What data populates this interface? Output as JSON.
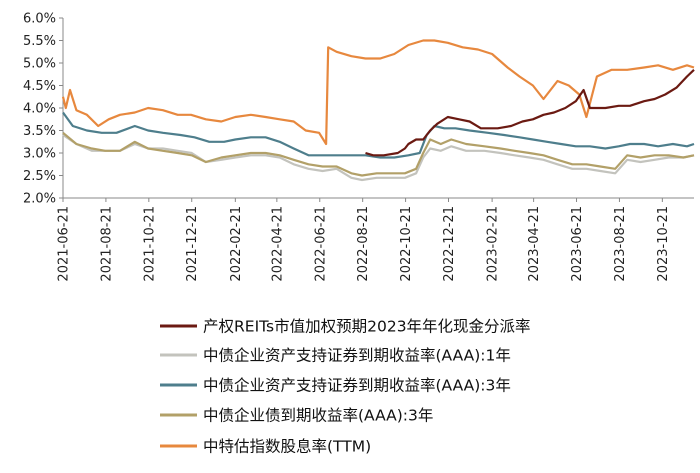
{
  "chart_data": {
    "type": "line",
    "x_ticks": [
      "2021-06-21",
      "2021-08-21",
      "2021-10-21",
      "2021-12-21",
      "2022-02-21",
      "2022-04-21",
      "2022-06-21",
      "2022-08-21",
      "2022-10-21",
      "2022-12-21",
      "2023-02-21",
      "2023-04-21",
      "2023-06-21",
      "2023-08-21",
      "2023-10-21"
    ],
    "y_ticks": [
      "2.0%",
      "2.5%",
      "3.0%",
      "3.5%",
      "4.0%",
      "4.5%",
      "5.0%",
      "5.5%",
      "6.0%"
    ],
    "ylim": [
      2.0,
      6.0
    ],
    "xlim": [
      "2021-06-21",
      "2023-12-05"
    ],
    "grid": false,
    "legend_position": "bottom",
    "series": [
      {
        "name": "产权REITs市值加权预期2023年年化现金分派率",
        "color": "#6b1a12",
        "points": [
          [
            "2022-08-25",
            3.0
          ],
          [
            "2022-09-05",
            2.95
          ],
          [
            "2022-09-20",
            2.95
          ],
          [
            "2022-10-10",
            3.0
          ],
          [
            "2022-10-20",
            3.1
          ],
          [
            "2022-10-25",
            3.2
          ],
          [
            "2022-11-05",
            3.3
          ],
          [
            "2022-11-15",
            3.3
          ],
          [
            "2022-11-25",
            3.5
          ],
          [
            "2022-12-05",
            3.65
          ],
          [
            "2022-12-20",
            3.8
          ],
          [
            "2023-01-05",
            3.75
          ],
          [
            "2023-01-20",
            3.7
          ],
          [
            "2023-02-05",
            3.55
          ],
          [
            "2023-03-01",
            3.55
          ],
          [
            "2023-03-20",
            3.6
          ],
          [
            "2023-04-05",
            3.7
          ],
          [
            "2023-04-20",
            3.75
          ],
          [
            "2023-05-05",
            3.85
          ],
          [
            "2023-05-20",
            3.9
          ],
          [
            "2023-06-05",
            4.0
          ],
          [
            "2023-06-20",
            4.15
          ],
          [
            "2023-07-01",
            4.4
          ],
          [
            "2023-07-10",
            4.0
          ],
          [
            "2023-08-01",
            4.0
          ],
          [
            "2023-08-20",
            4.05
          ],
          [
            "2023-09-05",
            4.05
          ],
          [
            "2023-09-25",
            4.15
          ],
          [
            "2023-10-10",
            4.2
          ],
          [
            "2023-10-25",
            4.3
          ],
          [
            "2023-11-10",
            4.45
          ],
          [
            "2023-11-25",
            4.7
          ],
          [
            "2023-12-05",
            4.85
          ]
        ]
      },
      {
        "name": "中债企业资产支持证券到期收益率(AAA):1年",
        "color": "#c3c3bd",
        "points": [
          [
            "2021-06-21",
            3.4
          ],
          [
            "2021-07-10",
            3.2
          ],
          [
            "2021-08-01",
            3.05
          ],
          [
            "2021-08-20",
            3.05
          ],
          [
            "2021-09-10",
            3.05
          ],
          [
            "2021-10-01",
            3.2
          ],
          [
            "2021-10-20",
            3.1
          ],
          [
            "2021-11-10",
            3.1
          ],
          [
            "2021-12-01",
            3.05
          ],
          [
            "2021-12-21",
            3.0
          ],
          [
            "2022-01-10",
            2.8
          ],
          [
            "2022-02-01",
            2.85
          ],
          [
            "2022-02-21",
            2.9
          ],
          [
            "2022-03-15",
            2.95
          ],
          [
            "2022-04-05",
            2.95
          ],
          [
            "2022-04-25",
            2.9
          ],
          [
            "2022-05-15",
            2.75
          ],
          [
            "2022-06-05",
            2.65
          ],
          [
            "2022-06-25",
            2.6
          ],
          [
            "2022-07-15",
            2.65
          ],
          [
            "2022-08-05",
            2.45
          ],
          [
            "2022-08-20",
            2.4
          ],
          [
            "2022-09-10",
            2.45
          ],
          [
            "2022-10-01",
            2.45
          ],
          [
            "2022-10-20",
            2.45
          ],
          [
            "2022-11-05",
            2.55
          ],
          [
            "2022-11-15",
            2.9
          ],
          [
            "2022-11-25",
            3.1
          ],
          [
            "2022-12-10",
            3.05
          ],
          [
            "2022-12-25",
            3.15
          ],
          [
            "2023-01-15",
            3.05
          ],
          [
            "2023-02-10",
            3.05
          ],
          [
            "2023-03-05",
            3.0
          ],
          [
            "2023-03-25",
            2.95
          ],
          [
            "2023-04-15",
            2.9
          ],
          [
            "2023-05-05",
            2.85
          ],
          [
            "2023-05-25",
            2.75
          ],
          [
            "2023-06-15",
            2.65
          ],
          [
            "2023-07-05",
            2.65
          ],
          [
            "2023-07-25",
            2.6
          ],
          [
            "2023-08-15",
            2.55
          ],
          [
            "2023-09-01",
            2.85
          ],
          [
            "2023-09-20",
            2.8
          ],
          [
            "2023-10-10",
            2.85
          ],
          [
            "2023-10-30",
            2.9
          ],
          [
            "2023-11-20",
            2.9
          ],
          [
            "2023-12-05",
            2.95
          ]
        ]
      },
      {
        "name": "中债企业资产支持证券到期收益率(AAA):3年",
        "color": "#4e7e8c",
        "points": [
          [
            "2021-06-21",
            3.9
          ],
          [
            "2021-07-05",
            3.6
          ],
          [
            "2021-07-25",
            3.5
          ],
          [
            "2021-08-15",
            3.45
          ],
          [
            "2021-09-05",
            3.45
          ],
          [
            "2021-10-01",
            3.6
          ],
          [
            "2021-10-20",
            3.5
          ],
          [
            "2021-11-10",
            3.45
          ],
          [
            "2021-12-05",
            3.4
          ],
          [
            "2021-12-25",
            3.35
          ],
          [
            "2022-01-15",
            3.25
          ],
          [
            "2022-02-05",
            3.25
          ],
          [
            "2022-02-21",
            3.3
          ],
          [
            "2022-03-15",
            3.35
          ],
          [
            "2022-04-05",
            3.35
          ],
          [
            "2022-04-25",
            3.25
          ],
          [
            "2022-05-15",
            3.1
          ],
          [
            "2022-06-05",
            2.95
          ],
          [
            "2022-06-25",
            2.95
          ],
          [
            "2022-07-15",
            2.95
          ],
          [
            "2022-08-05",
            2.95
          ],
          [
            "2022-08-25",
            2.95
          ],
          [
            "2022-09-15",
            2.9
          ],
          [
            "2022-10-05",
            2.9
          ],
          [
            "2022-10-25",
            2.95
          ],
          [
            "2022-11-10",
            3.0
          ],
          [
            "2022-11-20",
            3.4
          ],
          [
            "2022-12-01",
            3.6
          ],
          [
            "2022-12-15",
            3.55
          ],
          [
            "2022-12-31",
            3.55
          ],
          [
            "2023-01-20",
            3.5
          ],
          [
            "2023-02-15",
            3.45
          ],
          [
            "2023-03-10",
            3.4
          ],
          [
            "2023-04-01",
            3.35
          ],
          [
            "2023-04-20",
            3.3
          ],
          [
            "2023-05-10",
            3.25
          ],
          [
            "2023-05-30",
            3.2
          ],
          [
            "2023-06-20",
            3.15
          ],
          [
            "2023-07-10",
            3.15
          ],
          [
            "2023-08-01",
            3.1
          ],
          [
            "2023-08-20",
            3.15
          ],
          [
            "2023-09-05",
            3.2
          ],
          [
            "2023-09-25",
            3.2
          ],
          [
            "2023-10-15",
            3.15
          ],
          [
            "2023-11-05",
            3.2
          ],
          [
            "2023-11-25",
            3.15
          ],
          [
            "2023-12-05",
            3.2
          ]
        ]
      },
      {
        "name": "中债企业债到期收益率(AAA):3年",
        "color": "#b2a068",
        "points": [
          [
            "2021-06-21",
            3.45
          ],
          [
            "2021-07-10",
            3.2
          ],
          [
            "2021-08-01",
            3.1
          ],
          [
            "2021-08-20",
            3.05
          ],
          [
            "2021-09-10",
            3.05
          ],
          [
            "2021-10-01",
            3.25
          ],
          [
            "2021-10-20",
            3.1
          ],
          [
            "2021-11-10",
            3.05
          ],
          [
            "2021-12-01",
            3.0
          ],
          [
            "2021-12-21",
            2.95
          ],
          [
            "2022-01-10",
            2.8
          ],
          [
            "2022-02-01",
            2.9
          ],
          [
            "2022-02-21",
            2.95
          ],
          [
            "2022-03-15",
            3.0
          ],
          [
            "2022-04-05",
            3.0
          ],
          [
            "2022-04-25",
            2.95
          ],
          [
            "2022-05-15",
            2.85
          ],
          [
            "2022-06-05",
            2.75
          ],
          [
            "2022-06-25",
            2.7
          ],
          [
            "2022-07-15",
            2.7
          ],
          [
            "2022-08-05",
            2.55
          ],
          [
            "2022-08-20",
            2.5
          ],
          [
            "2022-09-10",
            2.55
          ],
          [
            "2022-10-01",
            2.55
          ],
          [
            "2022-10-20",
            2.55
          ],
          [
            "2022-11-05",
            2.65
          ],
          [
            "2022-11-15",
            3.0
          ],
          [
            "2022-11-25",
            3.3
          ],
          [
            "2022-12-10",
            3.2
          ],
          [
            "2022-12-25",
            3.3
          ],
          [
            "2023-01-15",
            3.2
          ],
          [
            "2023-02-10",
            3.15
          ],
          [
            "2023-03-05",
            3.1
          ],
          [
            "2023-03-25",
            3.05
          ],
          [
            "2023-04-15",
            3.0
          ],
          [
            "2023-05-05",
            2.95
          ],
          [
            "2023-05-25",
            2.85
          ],
          [
            "2023-06-15",
            2.75
          ],
          [
            "2023-07-05",
            2.75
          ],
          [
            "2023-07-25",
            2.7
          ],
          [
            "2023-08-15",
            2.65
          ],
          [
            "2023-09-01",
            2.95
          ],
          [
            "2023-09-20",
            2.9
          ],
          [
            "2023-10-10",
            2.95
          ],
          [
            "2023-10-30",
            2.95
          ],
          [
            "2023-11-20",
            2.9
          ],
          [
            "2023-12-05",
            2.95
          ]
        ]
      },
      {
        "name": "中特估指数股息率(TTM)",
        "color": "#e7883e",
        "points": [
          [
            "2021-06-21",
            4.25
          ],
          [
            "2021-06-25",
            4.0
          ],
          [
            "2021-07-01",
            4.4
          ],
          [
            "2021-07-10",
            3.95
          ],
          [
            "2021-07-25",
            3.85
          ],
          [
            "2021-08-10",
            3.6
          ],
          [
            "2021-08-25",
            3.75
          ],
          [
            "2021-09-10",
            3.85
          ],
          [
            "2021-10-01",
            3.9
          ],
          [
            "2021-10-20",
            4.0
          ],
          [
            "2021-11-10",
            3.95
          ],
          [
            "2021-12-01",
            3.85
          ],
          [
            "2021-12-20",
            3.85
          ],
          [
            "2022-01-10",
            3.75
          ],
          [
            "2022-02-01",
            3.7
          ],
          [
            "2022-02-21",
            3.8
          ],
          [
            "2022-03-15",
            3.85
          ],
          [
            "2022-04-05",
            3.8
          ],
          [
            "2022-04-25",
            3.75
          ],
          [
            "2022-05-15",
            3.7
          ],
          [
            "2022-06-01",
            3.5
          ],
          [
            "2022-06-20",
            3.45
          ],
          [
            "2022-06-30",
            3.2
          ],
          [
            "2022-07-03",
            5.35
          ],
          [
            "2022-07-15",
            5.25
          ],
          [
            "2022-08-05",
            5.15
          ],
          [
            "2022-08-25",
            5.1
          ],
          [
            "2022-09-15",
            5.1
          ],
          [
            "2022-10-05",
            5.2
          ],
          [
            "2022-10-25",
            5.4
          ],
          [
            "2022-11-15",
            5.5
          ],
          [
            "2022-12-01",
            5.5
          ],
          [
            "2022-12-20",
            5.45
          ],
          [
            "2023-01-10",
            5.35
          ],
          [
            "2023-02-01",
            5.3
          ],
          [
            "2023-02-21",
            5.2
          ],
          [
            "2023-03-15",
            4.9
          ],
          [
            "2023-04-01",
            4.7
          ],
          [
            "2023-04-20",
            4.5
          ],
          [
            "2023-05-05",
            4.2
          ],
          [
            "2023-05-25",
            4.6
          ],
          [
            "2023-06-10",
            4.5
          ],
          [
            "2023-06-25",
            4.3
          ],
          [
            "2023-07-05",
            3.8
          ],
          [
            "2023-07-20",
            4.7
          ],
          [
            "2023-08-10",
            4.85
          ],
          [
            "2023-09-01",
            4.85
          ],
          [
            "2023-09-25",
            4.9
          ],
          [
            "2023-10-15",
            4.95
          ],
          [
            "2023-11-05",
            4.85
          ],
          [
            "2023-11-25",
            4.95
          ],
          [
            "2023-12-05",
            4.9
          ]
        ]
      }
    ]
  }
}
